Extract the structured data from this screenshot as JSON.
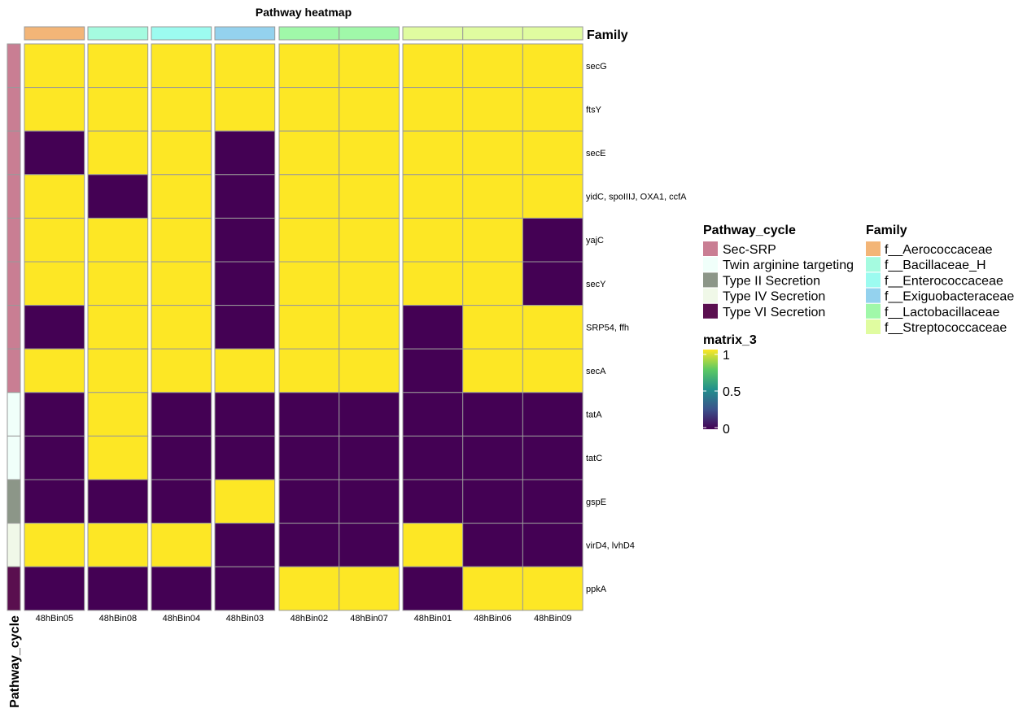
{
  "chart_data": {
    "type": "heatmap",
    "title": "Pathway heatmap",
    "columns": [
      "48hBin05",
      "48hBin08",
      "48hBin04",
      "48hBin03",
      "48hBin02",
      "48hBin07",
      "48hBin01",
      "48hBin06",
      "48hBin09"
    ],
    "column_groups": [
      [
        0
      ],
      [
        1
      ],
      [
        2
      ],
      [
        3
      ],
      [
        4,
        5
      ],
      [
        6,
        7,
        8
      ]
    ],
    "rows": [
      "secG",
      "ftsY",
      "secE",
      "yidC, spoIIIJ, OXA1, ccfA",
      "yajC",
      "secY",
      "SRP54, ffh",
      "secA",
      "tatA",
      "tatC",
      "gspE",
      "virD4, lvhD4",
      "ppkA"
    ],
    "values": [
      [
        1,
        1,
        1,
        1,
        1,
        1,
        1,
        1,
        1
      ],
      [
        1,
        1,
        1,
        1,
        1,
        1,
        1,
        1,
        1
      ],
      [
        0,
        1,
        1,
        0,
        1,
        1,
        1,
        1,
        1
      ],
      [
        1,
        0,
        1,
        0,
        1,
        1,
        1,
        1,
        1
      ],
      [
        1,
        1,
        1,
        0,
        1,
        1,
        1,
        1,
        0
      ],
      [
        1,
        1,
        1,
        0,
        1,
        1,
        1,
        1,
        0
      ],
      [
        0,
        1,
        1,
        0,
        1,
        1,
        0,
        1,
        1
      ],
      [
        1,
        1,
        1,
        1,
        1,
        1,
        0,
        1,
        1
      ],
      [
        0,
        1,
        0,
        0,
        0,
        0,
        0,
        0,
        0
      ],
      [
        0,
        1,
        0,
        0,
        0,
        0,
        0,
        0,
        0
      ],
      [
        0,
        0,
        0,
        1,
        0,
        0,
        0,
        0,
        0
      ],
      [
        1,
        1,
        1,
        0,
        0,
        0,
        1,
        0,
        0
      ],
      [
        0,
        0,
        0,
        0,
        1,
        1,
        0,
        1,
        1
      ]
    ],
    "row_annotation": {
      "title": "Pathway_cycle",
      "values": [
        "Sec-SRP",
        "Sec-SRP",
        "Sec-SRP",
        "Sec-SRP",
        "Sec-SRP",
        "Sec-SRP",
        "Sec-SRP",
        "Sec-SRP",
        "Twin arginine targeting",
        "Twin arginine targeting",
        "Type II Secretion",
        "Type IV Secretion",
        "Type VI Secretion"
      ],
      "levels": [
        {
          "name": "Sec-SRP",
          "color": "#C97E93"
        },
        {
          "name": "Twin arginine targeting",
          "color": "#F0FFFA"
        },
        {
          "name": "Type II Secretion",
          "color": "#8C9688"
        },
        {
          "name": "Type IV Secretion",
          "color": "#F0F8E8"
        },
        {
          "name": "Type VI Secretion",
          "color": "#5A0F4F"
        }
      ]
    },
    "column_annotation": {
      "title": "Family",
      "values": [
        "f__Aerococcaceae",
        "f__Bacillaceae_H",
        "f__Enterococcaceae",
        "f__Exiguobacteraceae",
        "f__Lactobacillaceae",
        "f__Lactobacillaceae",
        "f__Streptococcaceae",
        "f__Streptococcaceae",
        "f__Streptococcaceae"
      ],
      "levels": [
        {
          "name": "f__Aerococcaceae",
          "color": "#F3B577"
        },
        {
          "name": "f__Bacillaceae_H",
          "color": "#A5FBE0"
        },
        {
          "name": "f__Enterococcaceae",
          "color": "#9CFBF0"
        },
        {
          "name": "f__Exiguobacteraceae",
          "color": "#94D2EE"
        },
        {
          "name": "f__Lactobacillaceae",
          "color": "#A0F8A9"
        },
        {
          "name": "f__Streptococcaceae",
          "color": "#E0FCA0"
        }
      ]
    },
    "color_scale": {
      "title": "matrix_3",
      "low_color": "#440154",
      "high_color": "#FDE725",
      "range": [
        0,
        1
      ],
      "ticks": [
        "1",
        "0.5",
        "0"
      ]
    }
  }
}
